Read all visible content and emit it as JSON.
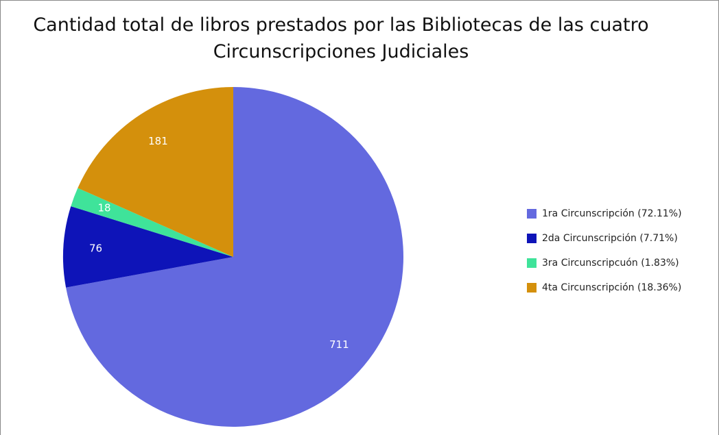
{
  "chart_data": {
    "type": "pie",
    "title_lines": [
      "Cantidad total de libros prestados por las Bibliotecas de las cuatro",
      "Circunscripciones Judiciales"
    ],
    "categories": [
      "1ra Circunscripción (72.11%)",
      "2da Circunscripción (7.71%)",
      "3ra Circunscripcuón (1.83%)",
      "4ta Circunscripción (18.36%)"
    ],
    "values": [
      711,
      76,
      18,
      181
    ],
    "colors": [
      "#6369df",
      "#0e14b8",
      "#3fe39a",
      "#d4900c"
    ],
    "legend": "right"
  }
}
